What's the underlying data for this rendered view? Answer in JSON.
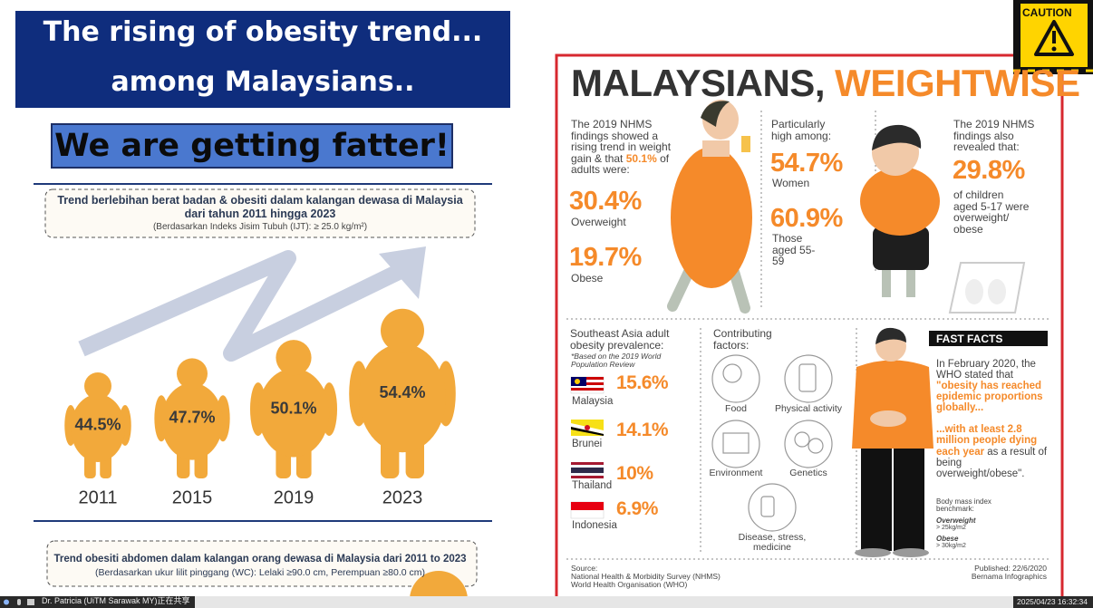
{
  "left": {
    "title_line1": "The rising of obesity trend...",
    "title_line2": "among Malaysians..",
    "banner": "We are getting fatter!",
    "trend_box": {
      "title": "Trend berlebihan berat badan & obesiti dalam kalangan dewasa di Malaysia dari tahun 2011 hingga 2023",
      "note": "(Berdasarkan Indeks Jisim Tubuh (IJT): ≥ 25.0 kg/m²)"
    },
    "figures": [
      {
        "year": "2011",
        "value": "44.5%"
      },
      {
        "year": "2015",
        "value": "47.7%"
      },
      {
        "year": "2019",
        "value": "50.1%"
      },
      {
        "year": "2023",
        "value": "54.4%"
      }
    ],
    "abdomen_box": {
      "title": "Trend obesiti abdomen dalam kalangan orang dewasa di Malaysia dari 2011 to 2023",
      "note": "(Berdasarkan ukur lilit pinggang (WC): Lelaki ≥90.0 cm, Perempuan ≥80.0 cm)"
    }
  },
  "right": {
    "caution": "CAUTION",
    "heading_dark": "MALAYSIANS,",
    "heading_orange": "WEIGHTWISE",
    "adults": {
      "intro_before": "The 2019 NHMS findings showed a rising trend in weight gain & that",
      "intro_highlight": "50.1%",
      "intro_after": "of adults were:",
      "stats": [
        {
          "value": "30.4%",
          "label": "Overweight"
        },
        {
          "value": "19.7%",
          "label": "Obese"
        }
      ]
    },
    "high_among": {
      "intro": "Particularly high among:",
      "stats": [
        {
          "value": "54.7%",
          "label": "Women"
        },
        {
          "value": "60.9%",
          "label": "Those aged 55-59"
        }
      ]
    },
    "children": {
      "intro": "The 2019 NHMS findings also revealed that:",
      "value": "29.8%",
      "label": "of children aged 5-17 were overweight/ obese"
    },
    "sea": {
      "title": "Southeast Asia adult obesity prevalence:",
      "note": "*Based on the 2019 World Population Review",
      "countries": [
        {
          "name": "Malaysia",
          "value": "15.6%"
        },
        {
          "name": "Brunei",
          "value": "14.1%"
        },
        {
          "name": "Thailand",
          "value": "10%"
        },
        {
          "name": "Indonesia",
          "value": "6.9%"
        }
      ]
    },
    "factors": {
      "title": "Contributing factors:",
      "items": [
        "Food",
        "Physical activity",
        "Environment",
        "Genetics",
        "Disease, stress, medicine"
      ]
    },
    "fast_facts": {
      "title": "FAST FACTS",
      "intro": "In February 2020, the WHO stated that",
      "quote": "\"obesity has reached epidemic proportions globally...",
      "deaths": "...with at least 2.8 million people dying each year",
      "deaths_after": "as a result of being overweight/obese\".",
      "bmi": {
        "title": "Body mass index benchmark:",
        "items": [
          {
            "label": "Overweight",
            "value": "> 25kg/m2"
          },
          {
            "label": "Obese",
            "value": "> 30kg/m2"
          }
        ]
      }
    },
    "source": {
      "label": "Source:",
      "items": [
        "National Health & Morbidity Survey (NHMS)",
        "World Health Organisation (WHO)"
      ]
    },
    "published": "Published: 22/6/2020",
    "publisher": "Bernama Infographics"
  },
  "taskbar": {
    "presenter": "Dr. Patricia (UiTM Sarawak MY)正在共享",
    "timestamp": "2025/04/23 16:32:34"
  }
}
